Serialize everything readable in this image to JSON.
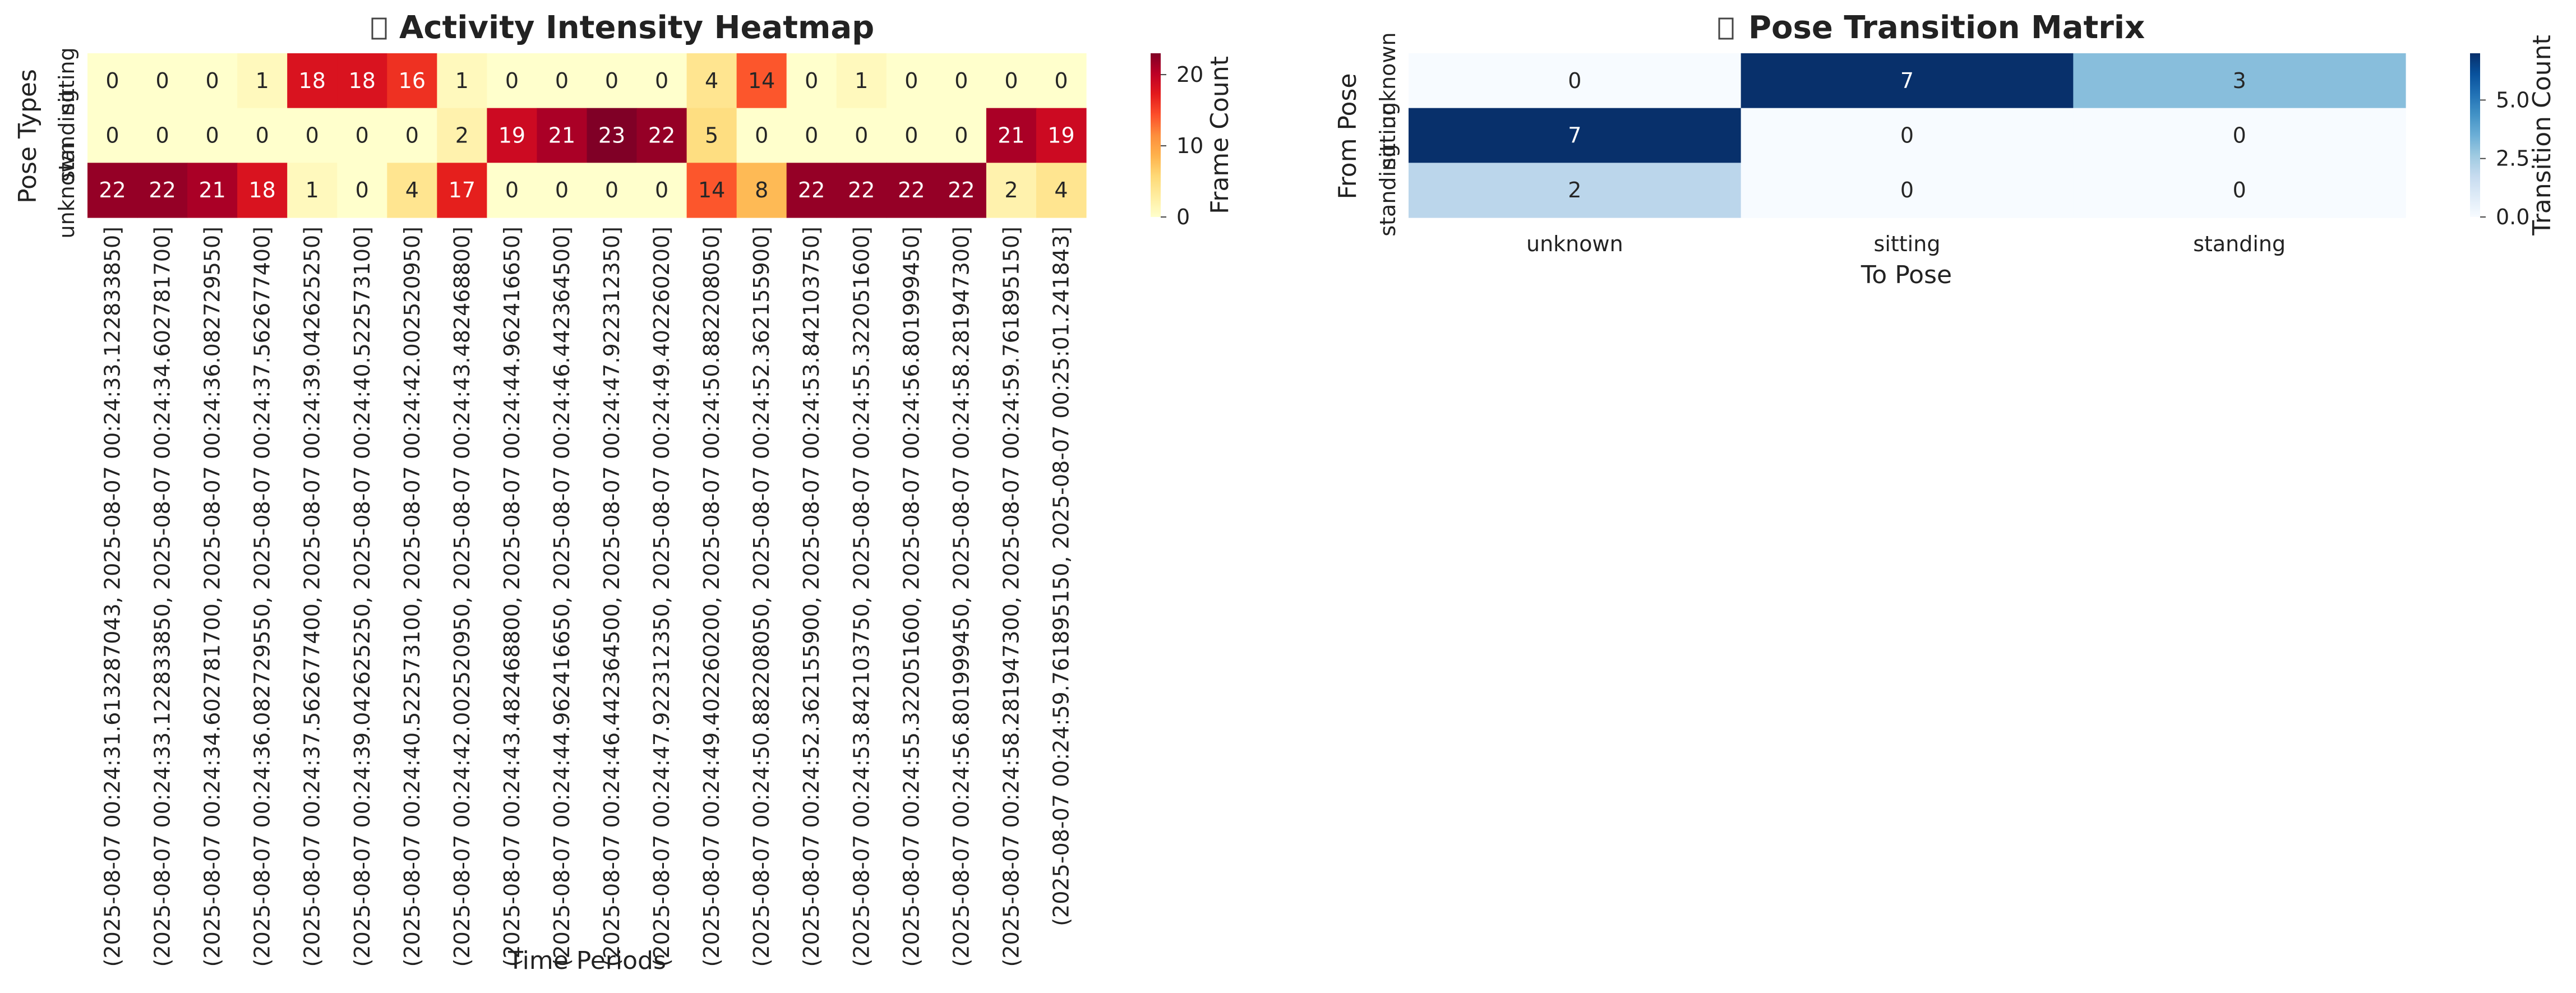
{
  "chart_data": [
    {
      "type": "heatmap",
      "title": "Activity Intensity Heatmap",
      "title_icon": "missing-glyph-box",
      "xlabel": "Time Periods",
      "ylabel": "Pose Types",
      "colorbar_label": "Frame Count",
      "colorbar_ticks": [
        0,
        10,
        20
      ],
      "colormap": "YlOrRd",
      "vmin": 0,
      "vmax": 23,
      "rows": [
        "sitting",
        "standing",
        "unknown"
      ],
      "columns": [
        "(2025-08-07 00:24:31.613287043, 2025-08-07 00:24:33.122833850]",
        "(2025-08-07 00:24:33.122833850, 2025-08-07 00:24:34.602781700]",
        "(2025-08-07 00:24:34.602781700, 2025-08-07 00:24:36.082729550]",
        "(2025-08-07 00:24:36.082729550, 2025-08-07 00:24:37.562677400]",
        "(2025-08-07 00:24:37.562677400, 2025-08-07 00:24:39.042625250]",
        "(2025-08-07 00:24:39.042625250, 2025-08-07 00:24:40.522573100]",
        "(2025-08-07 00:24:40.522573100, 2025-08-07 00:24:42.002520950]",
        "(2025-08-07 00:24:42.002520950, 2025-08-07 00:24:43.482468800]",
        "(2025-08-07 00:24:43.482468800, 2025-08-07 00:24:44.962416650]",
        "(2025-08-07 00:24:44.962416650, 2025-08-07 00:24:46.442364500]",
        "(2025-08-07 00:24:46.442364500, 2025-08-07 00:24:47.922312350]",
        "(2025-08-07 00:24:47.922312350, 2025-08-07 00:24:49.402260200]",
        "(2025-08-07 00:24:49.402260200, 2025-08-07 00:24:50.882208050]",
        "(2025-08-07 00:24:50.882208050, 2025-08-07 00:24:52.362155900]",
        "(2025-08-07 00:24:52.362155900, 2025-08-07 00:24:53.842103750]",
        "(2025-08-07 00:24:53.842103750, 2025-08-07 00:24:55.322051600]",
        "(2025-08-07 00:24:55.322051600, 2025-08-07 00:24:56.801999450]",
        "(2025-08-07 00:24:56.801999450, 2025-08-07 00:24:58.281947300]",
        "(2025-08-07 00:24:58.281947300, 2025-08-07 00:24:59.761895150]",
        "(2025-08-07 00:24:59.761895150, 2025-08-07 00:25:01.241843]"
      ],
      "values": [
        [
          0,
          0,
          0,
          1,
          18,
          18,
          16,
          1,
          0,
          0,
          0,
          0,
          4,
          14,
          0,
          1,
          0,
          0,
          0,
          0
        ],
        [
          0,
          0,
          0,
          0,
          0,
          0,
          0,
          2,
          19,
          21,
          23,
          22,
          5,
          0,
          0,
          0,
          0,
          0,
          21,
          19
        ],
        [
          22,
          22,
          21,
          18,
          1,
          0,
          4,
          17,
          0,
          0,
          0,
          0,
          14,
          8,
          22,
          22,
          22,
          22,
          2,
          4
        ]
      ]
    },
    {
      "type": "heatmap",
      "title": "Pose Transition Matrix",
      "title_icon": "missing-glyph-box",
      "xlabel": "To Pose",
      "ylabel": "From Pose",
      "colorbar_label": "Transition Count",
      "colorbar_ticks": [
        "0.0",
        "2.5",
        "5.0"
      ],
      "colormap": "Blues",
      "vmin": 0,
      "vmax": 7,
      "rows": [
        "unknown",
        "sitting",
        "standing"
      ],
      "columns": [
        "unknown",
        "sitting",
        "standing"
      ],
      "values": [
        [
          0,
          7,
          3
        ],
        [
          7,
          0,
          0
        ],
        [
          2,
          0,
          0
        ]
      ]
    }
  ]
}
